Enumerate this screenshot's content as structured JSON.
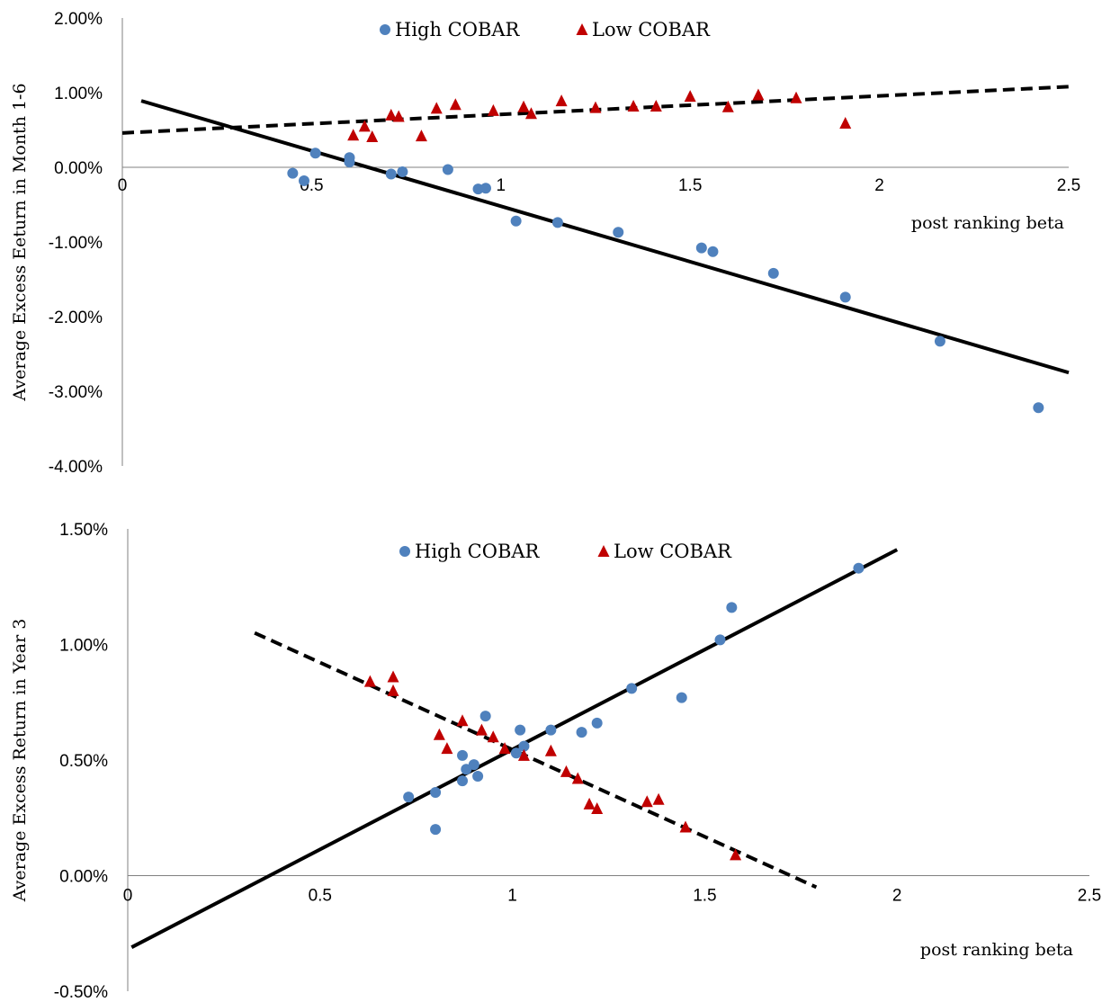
{
  "chart_data": [
    {
      "type": "scatter",
      "ylabel": "Average Excess Eeturn in Month 1-6",
      "xlabel": "post ranking beta",
      "xlim": [
        0,
        2.5
      ],
      "ylim": [
        -0.04,
        0.02
      ],
      "x_ticks": [
        "0",
        "0.5",
        "1",
        "1.5",
        "2",
        "2.5"
      ],
      "y_ticks": [
        "2.00%",
        "1.00%",
        "0.00%",
        "-1.00%",
        "-2.00%",
        "-3.00%",
        "-4.00%"
      ],
      "legend_position": "top-center",
      "series": [
        {
          "name": "High COBAR",
          "marker": "circle",
          "color": "#4F81BD",
          "points": [
            [
              0.45,
              -0.0008
            ],
            [
              0.48,
              -0.0018
            ],
            [
              0.51,
              0.0019
            ],
            [
              0.6,
              0.0013
            ],
            [
              0.6,
              0.0007
            ],
            [
              0.71,
              -0.0009
            ],
            [
              0.74,
              -0.0006
            ],
            [
              0.86,
              -0.0003
            ],
            [
              0.94,
              -0.0029
            ],
            [
              0.96,
              -0.0028
            ],
            [
              1.04,
              -0.0072
            ],
            [
              1.15,
              -0.0074
            ],
            [
              1.31,
              -0.0087
            ],
            [
              1.53,
              -0.0108
            ],
            [
              1.56,
              -0.0113
            ],
            [
              1.72,
              -0.0142
            ],
            [
              1.91,
              -0.0174
            ],
            [
              2.16,
              -0.0233
            ],
            [
              2.42,
              -0.0322
            ]
          ],
          "trendline": {
            "style": "solid",
            "x": [
              0.05,
              2.5
            ],
            "y": [
              0.0089,
              -0.0275
            ]
          }
        },
        {
          "name": "Low COBAR",
          "marker": "triangle",
          "color": "#C00000",
          "points": [
            [
              0.61,
              0.0043
            ],
            [
              0.64,
              0.0055
            ],
            [
              0.66,
              0.0041
            ],
            [
              0.71,
              0.007
            ],
            [
              0.73,
              0.0068
            ],
            [
              0.79,
              0.0042
            ],
            [
              0.83,
              0.0079
            ],
            [
              0.88,
              0.0084
            ],
            [
              0.98,
              0.0076
            ],
            [
              1.06,
              0.0081
            ],
            [
              1.08,
              0.0072
            ],
            [
              1.16,
              0.0089
            ],
            [
              1.25,
              0.008
            ],
            [
              1.35,
              0.0082
            ],
            [
              1.41,
              0.0082
            ],
            [
              1.5,
              0.0095
            ],
            [
              1.6,
              0.0081
            ],
            [
              1.68,
              0.0097
            ],
            [
              1.78,
              0.0093
            ],
            [
              1.91,
              0.0059
            ]
          ],
          "trendline": {
            "style": "dashed",
            "x": [
              0,
              2.5
            ],
            "y": [
              0.0046,
              0.0108
            ]
          }
        }
      ]
    },
    {
      "type": "scatter",
      "ylabel": "Average Excess Return in Year 3",
      "xlabel": "post ranking beta",
      "xlim": [
        0,
        2.5
      ],
      "ylim": [
        -0.005,
        0.015
      ],
      "x_ticks": [
        "0",
        "0.5",
        "1",
        "1.5",
        "2",
        "2.5"
      ],
      "y_ticks": [
        "1.50%",
        "1.00%",
        "0.50%",
        "0.00%",
        "-0.50%"
      ],
      "legend_position": "top-center",
      "series": [
        {
          "name": "High COBAR",
          "marker": "circle",
          "color": "#4F81BD",
          "points": [
            [
              0.73,
              0.0034
            ],
            [
              0.8,
              0.0036
            ],
            [
              0.8,
              0.002
            ],
            [
              0.87,
              0.0052
            ],
            [
              0.87,
              0.0041
            ],
            [
              0.88,
              0.0046
            ],
            [
              0.9,
              0.0048
            ],
            [
              0.91,
              0.0043
            ],
            [
              0.93,
              0.0069
            ],
            [
              1.01,
              0.0053
            ],
            [
              1.02,
              0.0063
            ],
            [
              1.03,
              0.0056
            ],
            [
              1.1,
              0.0063
            ],
            [
              1.18,
              0.0062
            ],
            [
              1.22,
              0.0066
            ],
            [
              1.31,
              0.0081
            ],
            [
              1.44,
              0.0077
            ],
            [
              1.54,
              0.0102
            ],
            [
              1.57,
              0.0116
            ],
            [
              1.9,
              0.0133
            ]
          ],
          "trendline": {
            "style": "solid",
            "x": [
              0.01,
              2.0
            ],
            "y": [
              -0.0031,
              0.0141
            ]
          }
        },
        {
          "name": "Low COBAR",
          "marker": "triangle",
          "color": "#C00000",
          "points": [
            [
              0.63,
              0.0084
            ],
            [
              0.69,
              0.0086
            ],
            [
              0.69,
              0.008
            ],
            [
              0.81,
              0.0061
            ],
            [
              0.83,
              0.0055
            ],
            [
              0.87,
              0.0067
            ],
            [
              0.92,
              0.0063
            ],
            [
              0.95,
              0.006
            ],
            [
              0.98,
              0.0055
            ],
            [
              1.03,
              0.0052
            ],
            [
              1.1,
              0.0054
            ],
            [
              1.14,
              0.0045
            ],
            [
              1.17,
              0.0042
            ],
            [
              1.2,
              0.0031
            ],
            [
              1.22,
              0.0029
            ],
            [
              1.35,
              0.0032
            ],
            [
              1.38,
              0.0033
            ],
            [
              1.45,
              0.0021
            ],
            [
              1.58,
              0.0009
            ]
          ],
          "trendline": {
            "style": "dashed",
            "x": [
              0.33,
              1.79
            ],
            "y": [
              0.0105,
              -0.0005
            ]
          }
        }
      ]
    }
  ]
}
